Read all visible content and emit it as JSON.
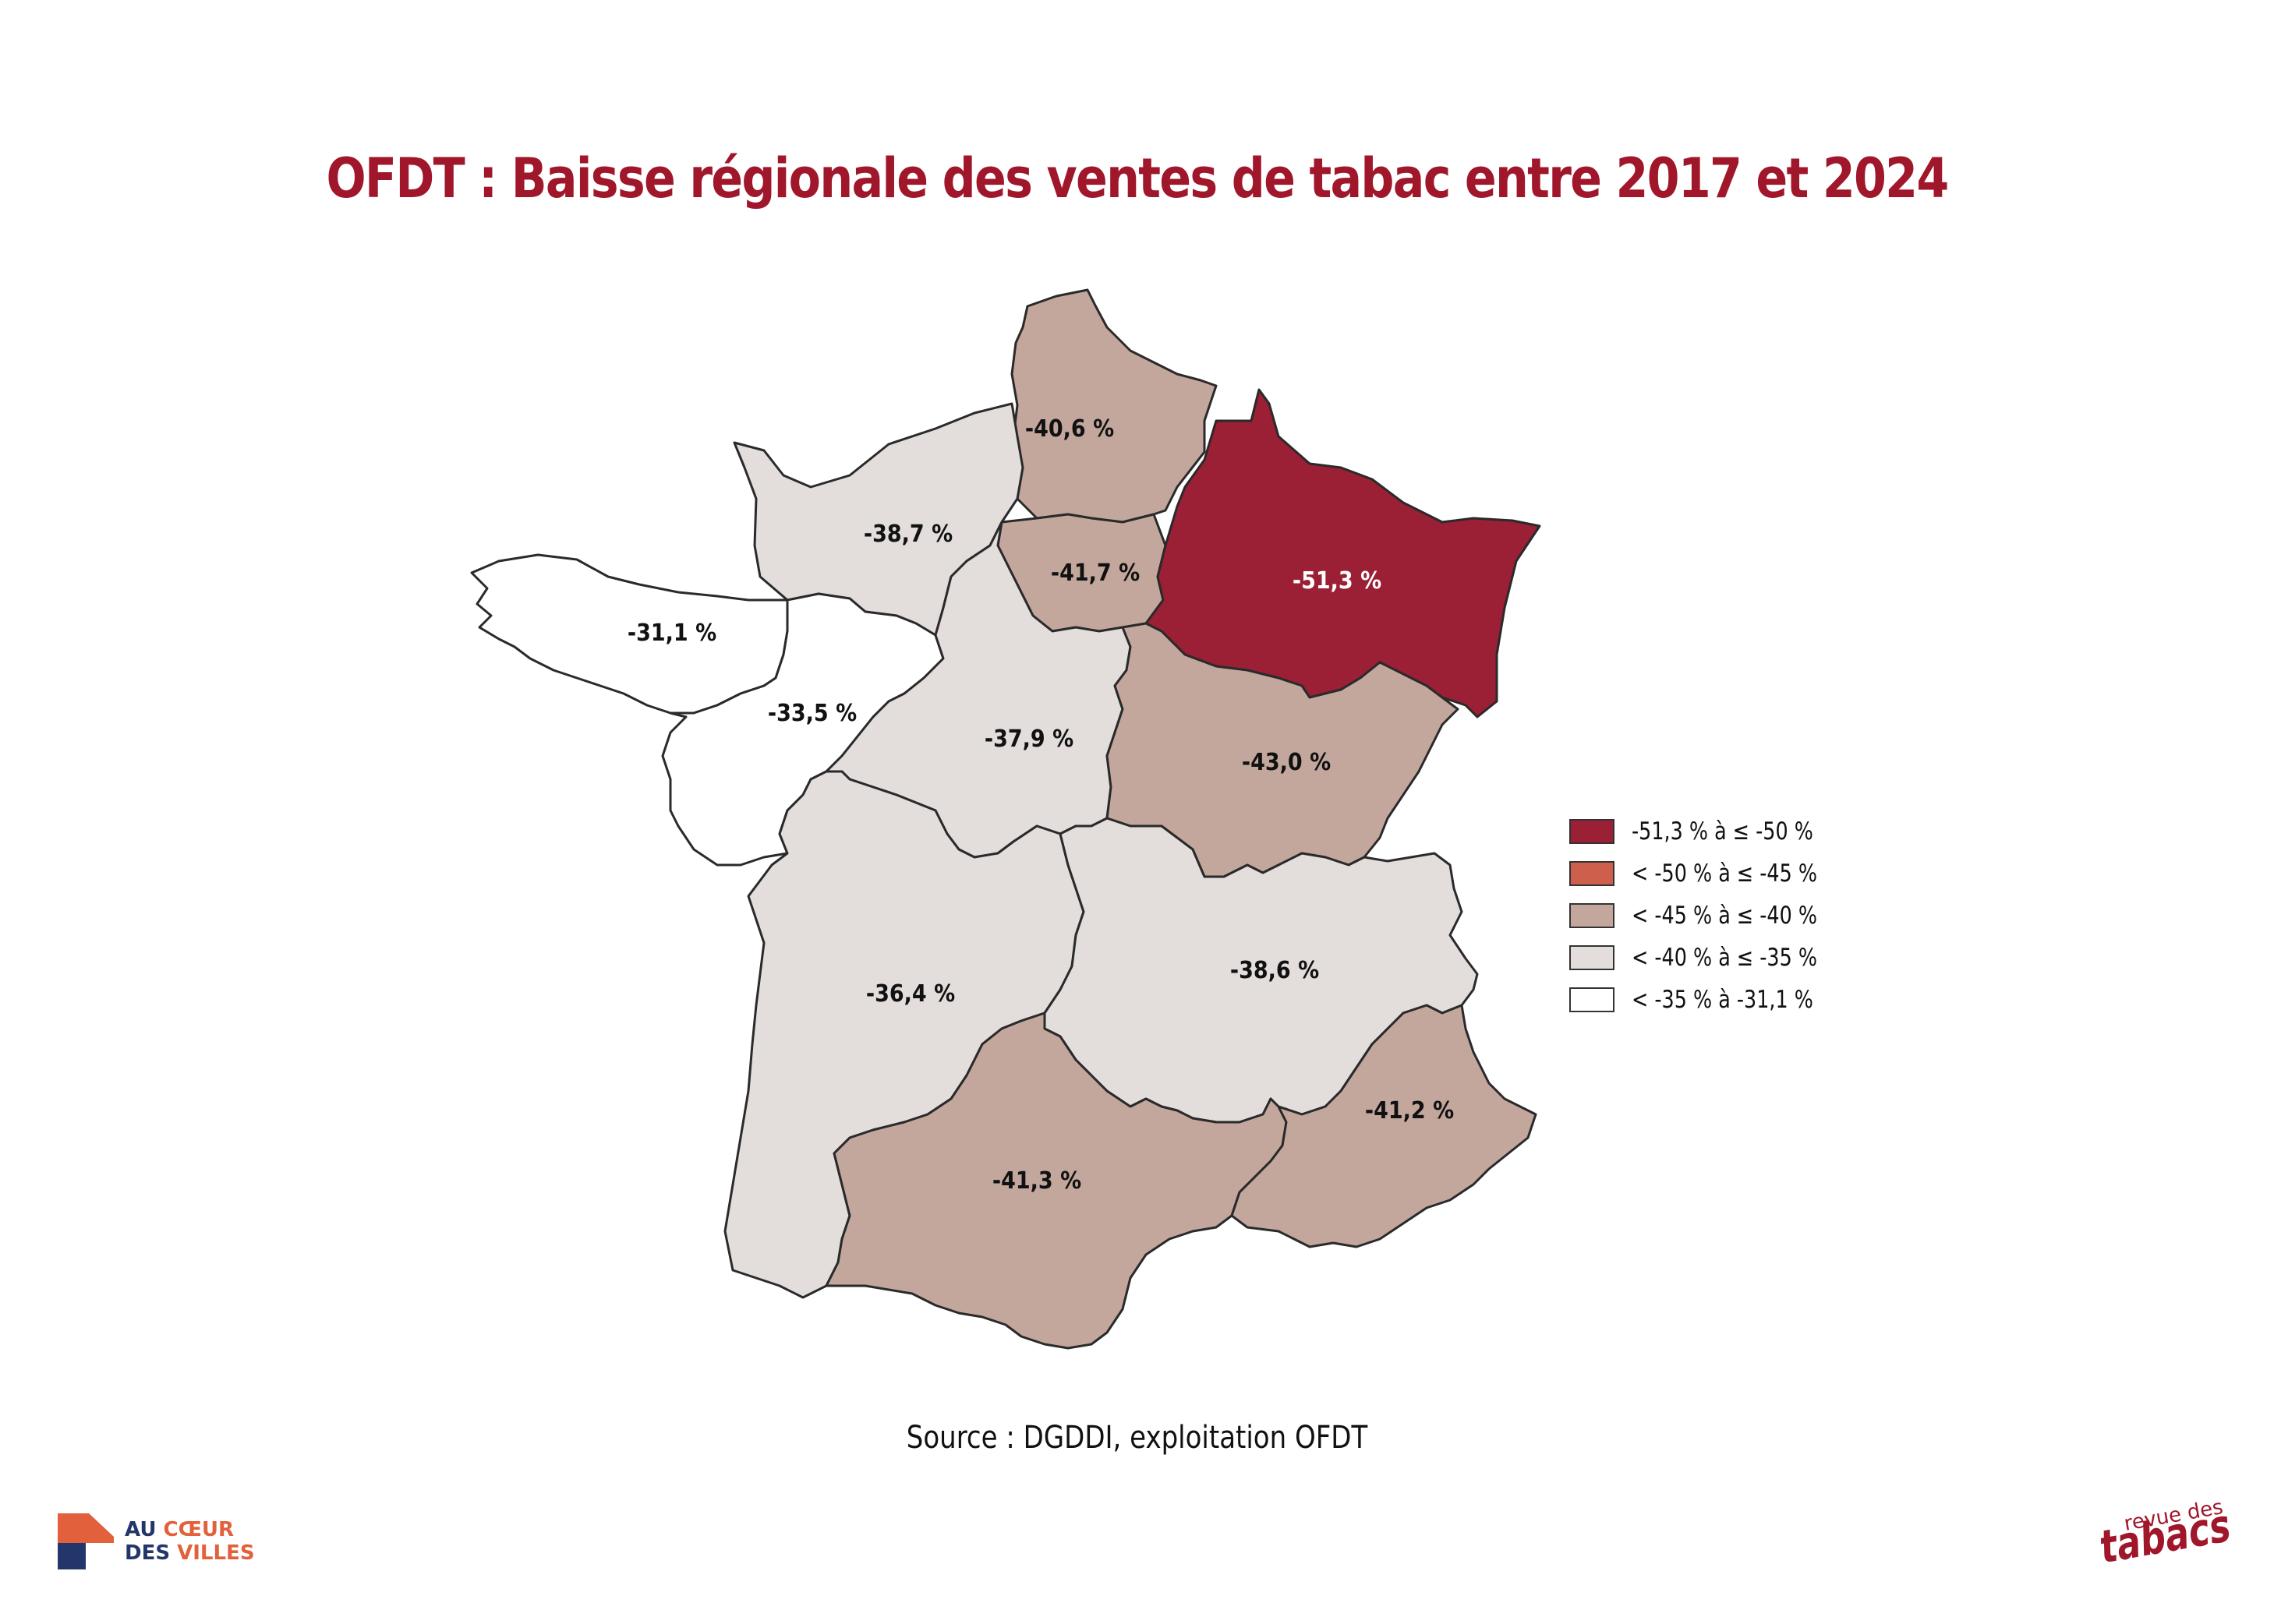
{
  "title": "OFDT : Baisse régionale des ventes de tabac entre 2017 et 2024",
  "source": "Source : DGDDI, exploitation OFDT",
  "colors": {
    "title": "#a0162a",
    "class_1": "#9b1f35",
    "class_2": "#cd5f4c",
    "class_3": "#c3a79d",
    "class_4": "#e3dddc",
    "class_5": "#ffffff"
  },
  "legend": [
    {
      "label": "-51,3 % à ≤ -50 %",
      "color": "#9b1f35"
    },
    {
      "label": "< -50 % à ≤ -45 %",
      "color": "#cd5f4c"
    },
    {
      "label": "< -45 % à ≤ -40 %",
      "color": "#c3a79d"
    },
    {
      "label": "< -40 % à ≤ -35 %",
      "color": "#e3dddc"
    },
    {
      "label": "< -35 % à -31,1 %",
      "color": "#ffffff"
    }
  ],
  "regions": [
    {
      "value_label": "-40,6 %",
      "value": -40.6,
      "class": 3
    },
    {
      "value_label": "-38,7 %",
      "value": -38.7,
      "class": 4
    },
    {
      "value_label": "-41,7 %",
      "value": -41.7,
      "class": 3
    },
    {
      "value_label": "-51,3 %",
      "value": -51.3,
      "class": 1
    },
    {
      "value_label": "-31,1 %",
      "value": -31.1,
      "class": 5
    },
    {
      "value_label": "-33,5 %",
      "value": -33.5,
      "class": 5
    },
    {
      "value_label": "-37,9 %",
      "value": -37.9,
      "class": 4
    },
    {
      "value_label": "-43,0 %",
      "value": -43.0,
      "class": 3
    },
    {
      "value_label": "-36,4 %",
      "value": -36.4,
      "class": 4
    },
    {
      "value_label": "-38,6 %",
      "value": -38.6,
      "class": 4
    },
    {
      "value_label": "-41,3 %",
      "value": -41.3,
      "class": 3
    },
    {
      "value_label": "-41,2 %",
      "value": -41.2,
      "class": 3
    }
  ],
  "logos": {
    "left": {
      "line1_a": "AU ",
      "line1_b": "CŒUR",
      "line2_a": "DES ",
      "line2_b": "VILLES"
    },
    "right": {
      "small": "revue des",
      "big": "tabacs"
    }
  }
}
